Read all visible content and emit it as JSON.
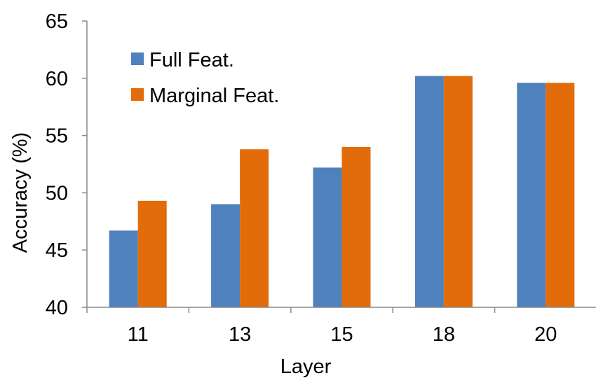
{
  "chart_data": {
    "type": "bar",
    "title": "",
    "xlabel": "Layer",
    "ylabel": "Accuracy (%)",
    "categories": [
      "11",
      "13",
      "15",
      "18",
      "20"
    ],
    "series": [
      {
        "name": "Full Feat.",
        "color": "#4f81bd",
        "values": [
          46.7,
          49.0,
          52.2,
          60.2,
          59.6
        ]
      },
      {
        "name": "Marginal Feat.",
        "color": "#e36c0a",
        "values": [
          49.3,
          53.8,
          54.0,
          60.2,
          59.6
        ]
      }
    ],
    "ylim": [
      40,
      65
    ],
    "yticks": [
      "40",
      "45",
      "50",
      "55",
      "60",
      "65"
    ],
    "grid": false,
    "legend": "top-left"
  }
}
